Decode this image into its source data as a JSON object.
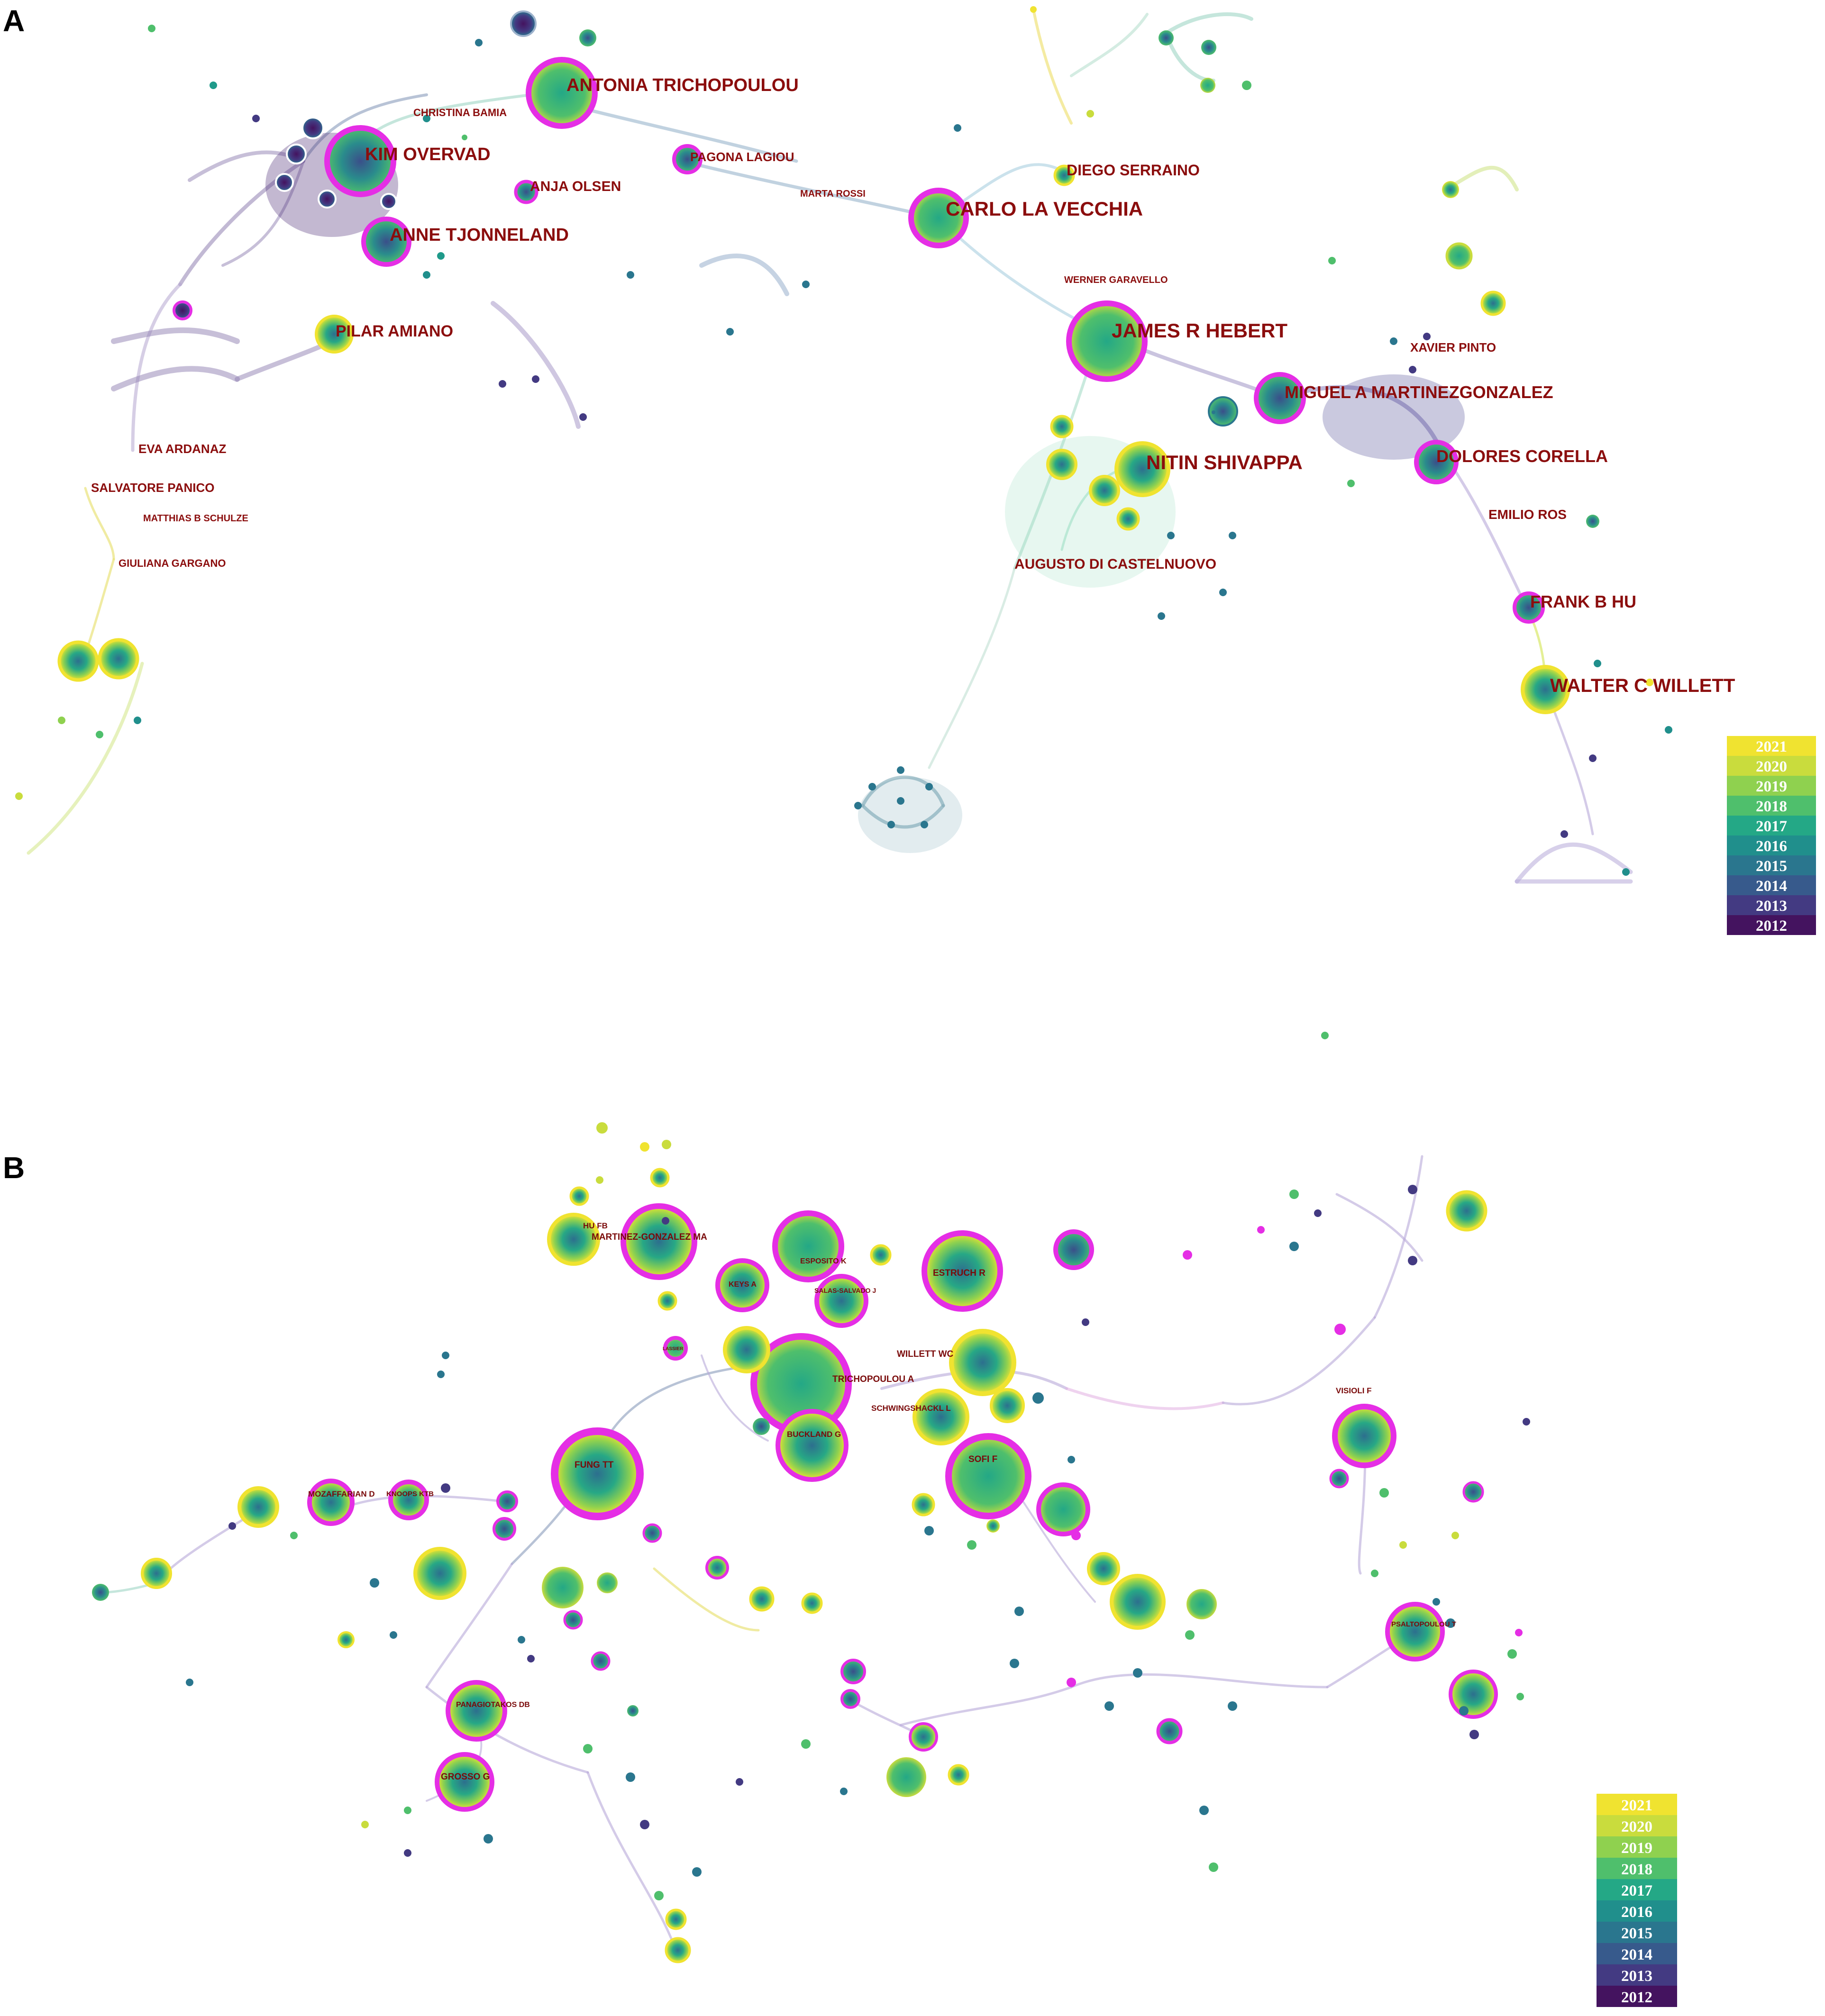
{
  "panels": {
    "a": {
      "letter": "A",
      "authors": [
        "ANTONIA TRICHOPOULOU",
        "CHRISTINA BAMIA",
        "KIM OVERVAD",
        "ANJA OLSEN",
        "PAGONA LAGIOU",
        "MARTA ROSSI",
        "ANNE TJONNELAND",
        "CARLO LA VECCHIA",
        "DIEGO SERRAINO",
        "WERNER GARAVELLO",
        "PILAR AMIANO",
        "JAMES R HEBERT",
        "XAVIER PINTO",
        "MIGUEL A MARTINEZGONZALEZ",
        "NITIN SHIVAPPA",
        "DOLORES CORELLA",
        "EVA ARDANAZ",
        "SALVATORE PANICO",
        "MATTHIAS B SCHULZE",
        "EMILIO ROS",
        "GIULIANA GARGANO",
        "AUGUSTO DI CASTELNUOVO",
        "FRANK B HU",
        "WALTER C WILLETT"
      ],
      "legend_years": [
        "2021",
        "2020",
        "2019",
        "2018",
        "2017",
        "2016",
        "2015",
        "2014",
        "2013",
        "2012"
      ]
    },
    "b": {
      "letter": "B",
      "authors": [
        "HU FB",
        "MARTINEZ-GONZALEZ MA",
        "ESPOSITO K",
        "ESTRUCH R",
        "KEYS A",
        "SALAS-SALVADO J",
        "LASSIER",
        "WILLETT WC",
        "TRICHOPOULOU A",
        "SCHWINGSHACKL L",
        "VISIOLI F",
        "BUCKLAND G",
        "SOFI F",
        "FUNG TT",
        "MOZAFFARIAN D",
        "KNOOPS KTB",
        "PSALTOPOULOU T",
        "PANAGIOTAKOS DB",
        "GROSSO G"
      ],
      "legend_years": [
        "2021",
        "2020",
        "2019",
        "2018",
        "2017",
        "2016",
        "2015",
        "2014",
        "2013",
        "2012"
      ]
    }
  },
  "colors": {
    "year_scale": [
      "#f0e330",
      "#c9dc3d",
      "#8fd14f",
      "#4fbf6c",
      "#24a886",
      "#208f8c",
      "#2a768e",
      "#375a8c",
      "#433a82",
      "#44135f"
    ],
    "burst_ring": "#e52ee5",
    "label": "#8b0d0d"
  }
}
